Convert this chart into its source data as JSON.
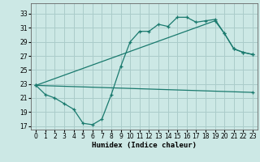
{
  "xlabel": "Humidex (Indice chaleur)",
  "bg_color": "#cce8e5",
  "grid_color": "#aaccca",
  "line_color": "#1a7a6e",
  "xlim": [
    -0.5,
    23.5
  ],
  "ylim": [
    16.5,
    34.5
  ],
  "yticks": [
    17,
    19,
    21,
    23,
    25,
    27,
    29,
    31,
    33
  ],
  "xticks": [
    0,
    1,
    2,
    3,
    4,
    5,
    6,
    7,
    8,
    9,
    10,
    11,
    12,
    13,
    14,
    15,
    16,
    17,
    18,
    19,
    20,
    21,
    22,
    23
  ],
  "curve_x": [
    0,
    1,
    2,
    3,
    4,
    5,
    6,
    7,
    8,
    9,
    10,
    11,
    12,
    13,
    14,
    15,
    16,
    17,
    18,
    19,
    20,
    21,
    22,
    23
  ],
  "curve_y": [
    22.8,
    21.5,
    21.0,
    20.2,
    19.4,
    17.4,
    17.2,
    18.0,
    21.5,
    25.5,
    29.0,
    30.5,
    30.5,
    31.5,
    31.2,
    32.5,
    32.5,
    31.8,
    32.0,
    32.2,
    30.2,
    28.0,
    27.5,
    27.2
  ],
  "upper_line_x": [
    0,
    19,
    20,
    21,
    22,
    23
  ],
  "upper_line_y": [
    22.8,
    32.0,
    30.2,
    28.0,
    27.5,
    27.2
  ],
  "lower_line_x": [
    0,
    23
  ],
  "lower_line_y": [
    22.8,
    21.8
  ]
}
